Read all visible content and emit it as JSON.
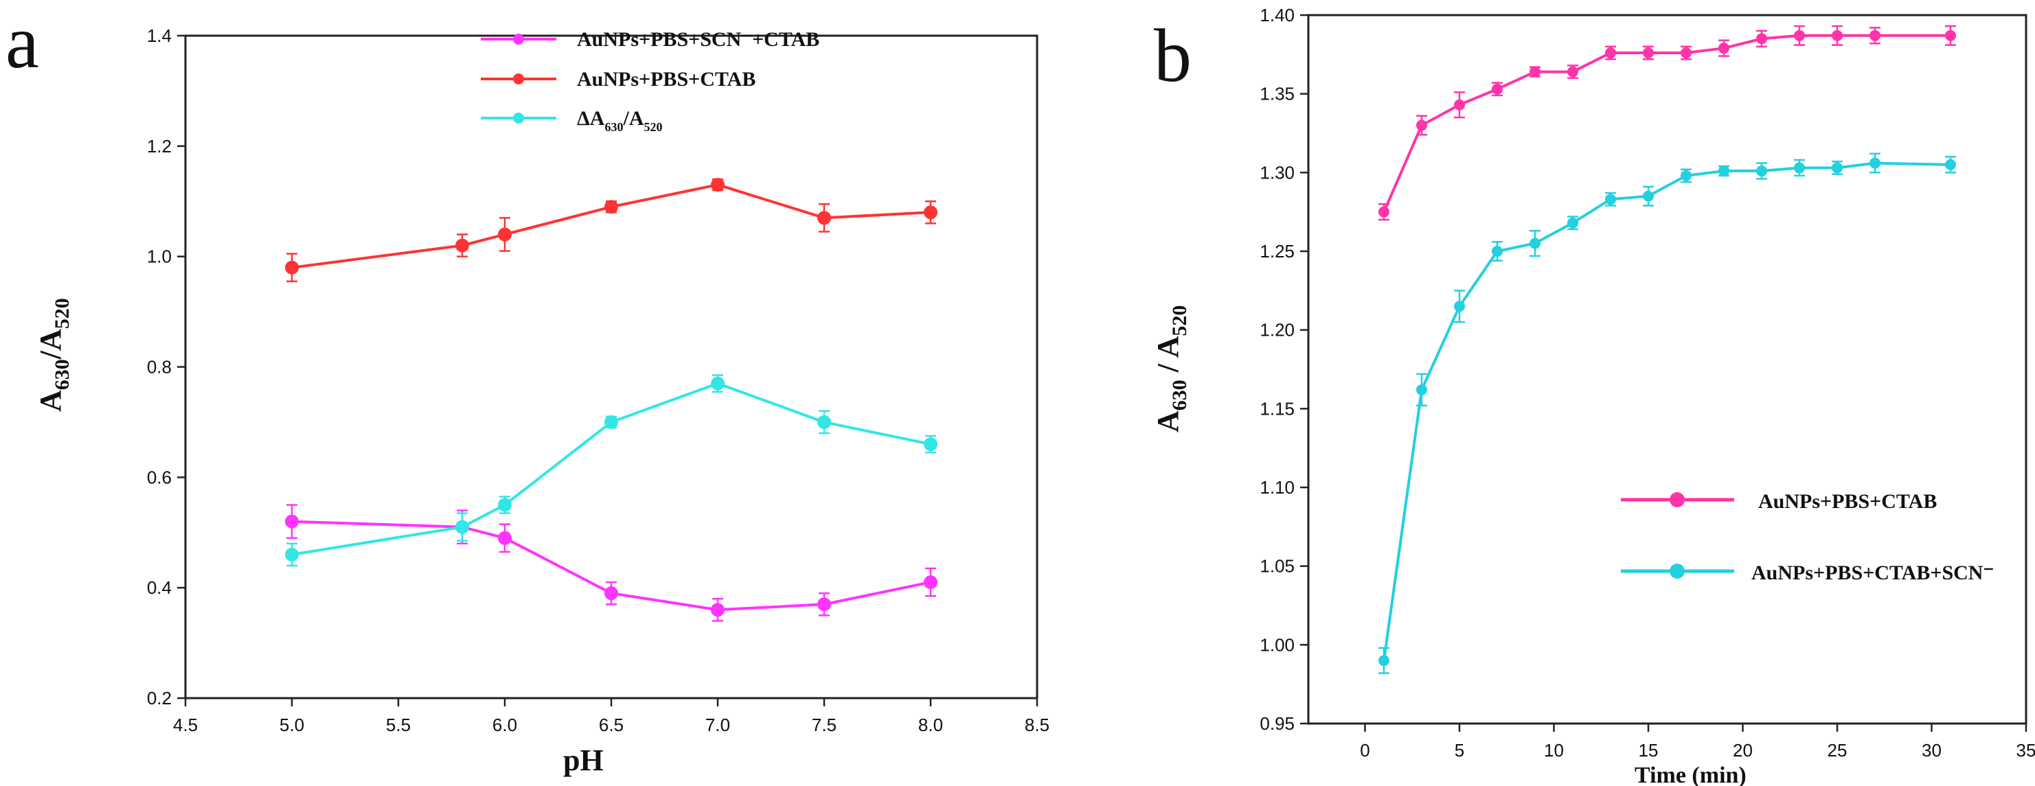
{
  "chart_data": [
    {
      "panel_label": "a",
      "type": "line",
      "xlabel": "pH",
      "ylabel": {
        "base": "A",
        "sub1": "630",
        "mid": "/A",
        "sub2": "520"
      },
      "xlim": [
        4.5,
        8.5
      ],
      "ylim": [
        0.2,
        1.4
      ],
      "xticks": [
        "4.5",
        "5.0",
        "5.5",
        "6.0",
        "6.5",
        "7.0",
        "7.5",
        "8.0",
        "8.5"
      ],
      "yticks": [
        "0.2",
        "0.4",
        "0.6",
        "0.8",
        "1.0",
        "1.2",
        "1.4"
      ],
      "legend_position": "top-right",
      "series": [
        {
          "name": "AuNPs+PBS+SCN⁻+CTAB",
          "color": "#ff33ff",
          "x": [
            5.0,
            5.8,
            6.0,
            6.5,
            7.0,
            7.5,
            8.0
          ],
          "values": [
            0.52,
            0.51,
            0.49,
            0.39,
            0.36,
            0.37,
            0.41
          ],
          "errors": [
            0.03,
            0.03,
            0.025,
            0.02,
            0.02,
            0.02,
            0.025
          ]
        },
        {
          "name": "AuNPs+PBS+CTAB",
          "color": "#ff3333",
          "x": [
            5.0,
            5.8,
            6.0,
            6.5,
            7.0,
            7.5,
            8.0
          ],
          "values": [
            0.98,
            1.02,
            1.04,
            1.09,
            1.13,
            1.07,
            1.08
          ],
          "errors": [
            0.025,
            0.02,
            0.03,
            0.01,
            0.01,
            0.025,
            0.02
          ]
        },
        {
          "name": "ΔA630/A520",
          "legend_parts": {
            "base": "ΔA",
            "sub1": "630",
            "mid": "/A",
            "sub2": "520"
          },
          "color": "#33e6e6",
          "x": [
            5.0,
            5.8,
            6.0,
            6.5,
            7.0,
            7.5,
            8.0
          ],
          "values": [
            0.46,
            0.51,
            0.55,
            0.7,
            0.77,
            0.7,
            0.66
          ],
          "errors": [
            0.02,
            0.025,
            0.015,
            0.01,
            0.015,
            0.02,
            0.015
          ]
        }
      ]
    },
    {
      "panel_label": "b",
      "type": "line",
      "xlabel": "Time (min)",
      "ylabel": {
        "base": "A",
        "sub1": "630",
        "mid": " / A",
        "sub2": "520"
      },
      "xlim": [
        -3,
        35
      ],
      "ylim": [
        0.95,
        1.4
      ],
      "xticks": [
        "0",
        "5",
        "10",
        "15",
        "20",
        "25",
        "30",
        "35"
      ],
      "yticks": [
        "0.95",
        "1.00",
        "1.05",
        "1.10",
        "1.15",
        "1.20",
        "1.25",
        "1.30",
        "1.35",
        "1.40"
      ],
      "legend_position": "center-right",
      "series": [
        {
          "name": "AuNPs+PBS+CTAB",
          "color": "#ff33aa",
          "x": [
            1,
            3,
            5,
            7,
            9,
            11,
            13,
            15,
            17,
            19,
            21,
            23,
            25,
            27,
            31
          ],
          "values": [
            1.275,
            1.33,
            1.343,
            1.353,
            1.364,
            1.364,
            1.376,
            1.376,
            1.376,
            1.379,
            1.385,
            1.387,
            1.387,
            1.387,
            1.387
          ],
          "errors": [
            0.005,
            0.006,
            0.008,
            0.004,
            0.003,
            0.004,
            0.004,
            0.004,
            0.004,
            0.005,
            0.005,
            0.006,
            0.006,
            0.005,
            0.006
          ]
        },
        {
          "name": "AuNPs+PBS+CTAB+SCN⁻",
          "color": "#22d0e0",
          "x": [
            1,
            3,
            5,
            7,
            9,
            11,
            13,
            15,
            17,
            19,
            21,
            23,
            25,
            27,
            31
          ],
          "values": [
            0.99,
            1.162,
            1.215,
            1.25,
            1.255,
            1.268,
            1.283,
            1.285,
            1.298,
            1.301,
            1.301,
            1.303,
            1.303,
            1.306,
            1.305
          ],
          "errors": [
            0.008,
            0.01,
            0.01,
            0.006,
            0.008,
            0.004,
            0.004,
            0.006,
            0.004,
            0.003,
            0.005,
            0.005,
            0.004,
            0.006,
            0.005
          ]
        }
      ]
    }
  ]
}
